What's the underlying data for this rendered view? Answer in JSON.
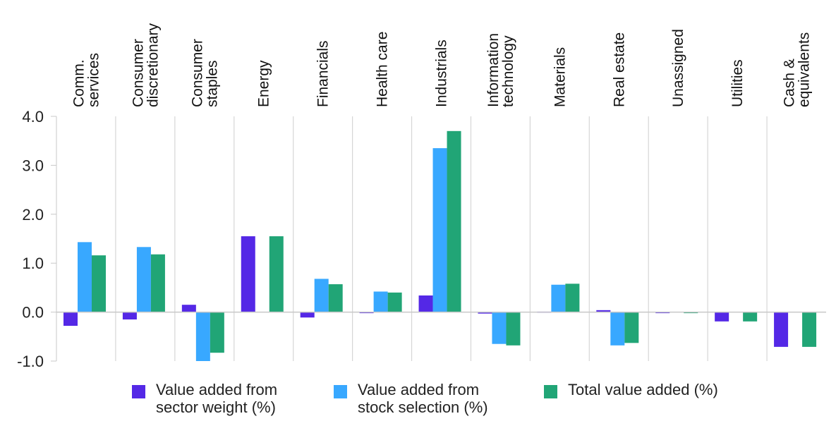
{
  "chart_data": {
    "type": "bar",
    "categories": [
      "Comm.\nservices",
      "Consumer\ndiscretionary",
      "Consumer\nstaples",
      "Energy",
      "Financials",
      "Health care",
      "Industrials",
      "Information\ntechnology",
      "Materials",
      "Real estate",
      "Unassigned",
      "Utilities",
      "Cash &\nequivalents"
    ],
    "series": [
      {
        "name": "Value added from\nsector weight (%)",
        "color": "#5428e6",
        "values": [
          -0.28,
          -0.15,
          0.15,
          1.55,
          -0.11,
          -0.02,
          0.34,
          -0.03,
          0.01,
          0.04,
          -0.02,
          -0.19,
          -0.71
        ]
      },
      {
        "name": "Value added from\nstock selection (%)",
        "color": "#38a8ff",
        "values": [
          1.43,
          1.33,
          -1.0,
          0.0,
          0.68,
          0.42,
          3.35,
          -0.65,
          0.56,
          -0.68,
          0.0,
          0.0,
          0.0
        ]
      },
      {
        "name": "Total value added (%)",
        "color": "#21a576",
        "values": [
          1.16,
          1.18,
          -0.83,
          1.55,
          0.57,
          0.4,
          3.7,
          -0.68,
          0.58,
          -0.63,
          -0.02,
          -0.19,
          -0.71
        ]
      }
    ],
    "yticks": [
      "4.0",
      "3.0",
      "2.0",
      "1.0",
      "0.0",
      "-1.0"
    ],
    "ylim": [
      -1.0,
      4.0
    ],
    "grid": "vertical separators between categories",
    "legend_position": "bottom"
  }
}
